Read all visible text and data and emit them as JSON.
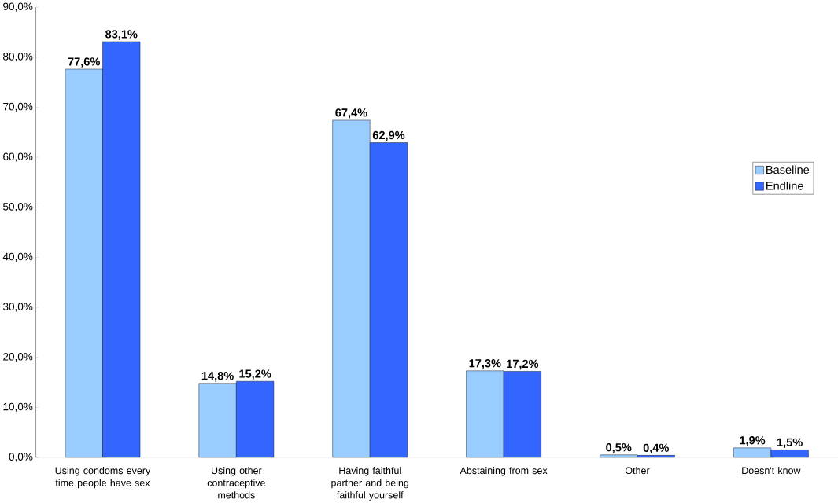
{
  "chart_data": {
    "type": "bar",
    "categories": [
      "Using condoms every time people have sex",
      "Using other contraceptive methods",
      "Having faithful partner and being faithful yourself",
      "Abstaining from sex",
      "Other",
      "Doesn't know"
    ],
    "series": [
      {
        "name": "Baseline",
        "color": "#99ccff",
        "values": [
          77.6,
          14.8,
          67.4,
          17.3,
          0.5,
          1.9
        ],
        "value_labels": [
          "77,6%",
          "14,8%",
          "67,4%",
          "17,3%",
          "0,5%",
          "1,9%"
        ]
      },
      {
        "name": "Endline",
        "color": "#3366ff",
        "values": [
          83.1,
          15.2,
          62.9,
          17.2,
          0.4,
          1.5
        ],
        "value_labels": [
          "83,1%",
          "15,2%",
          "62,9%",
          "17,2%",
          "0,4%",
          "1,5%"
        ]
      }
    ],
    "ylim": [
      0,
      90
    ],
    "yticks": [
      {
        "value": 0,
        "label": "0,0%"
      },
      {
        "value": 10,
        "label": "10,0%"
      },
      {
        "value": 20,
        "label": "20,0%"
      },
      {
        "value": 30,
        "label": "30,0%"
      },
      {
        "value": 40,
        "label": "40,0%"
      },
      {
        "value": 50,
        "label": "50,0%"
      },
      {
        "value": 60,
        "label": "60,0%"
      },
      {
        "value": 70,
        "label": "70,0%"
      },
      {
        "value": 80,
        "label": "80,0%"
      },
      {
        "value": 90,
        "label": "90,0%"
      }
    ],
    "legend": "right"
  }
}
